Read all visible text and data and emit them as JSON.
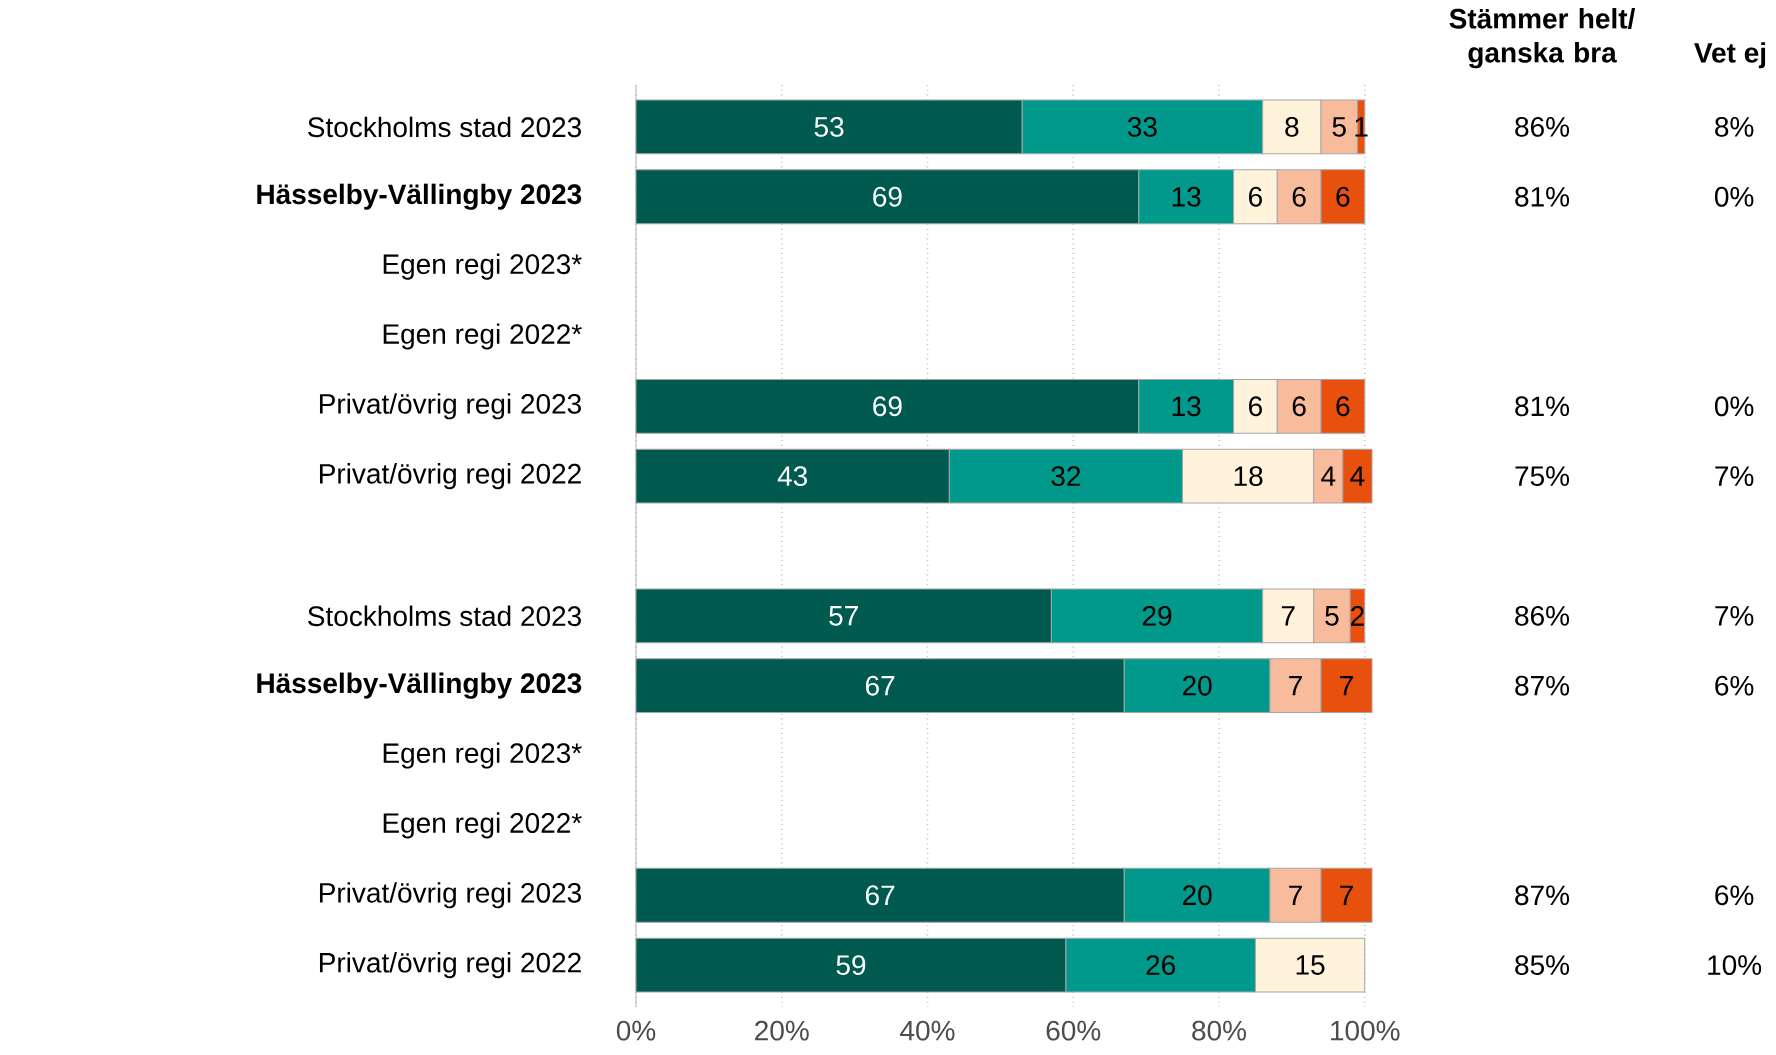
{
  "chart_data": {
    "type": "bar",
    "orientation": "horizontal",
    "stacked": true,
    "data_labels": true,
    "grid": "x",
    "categories": [
      "Stockholms stad 2023",
      "**Hässelby-Vällingby 2023**",
      "Egen regi 2023*",
      "Egen regi 2022*",
      "Privat/övrig regi 2023",
      "Privat/övrig regi 2022",
      null,
      "Stockholms stad 2023",
      "**Hässelby-Vällingby 2023**",
      "Egen regi 2023*",
      "Egen regi 2022*",
      "Privat/övrig regi 2023",
      "Privat/övrig regi 2022"
    ],
    "series": [
      {
        "color": "#005a4f",
        "values": [
          53,
          69,
          null,
          null,
          69,
          43,
          null,
          57,
          67,
          null,
          null,
          67,
          59
        ]
      },
      {
        "color": "#00998c",
        "values": [
          33,
          13,
          null,
          null,
          13,
          32,
          null,
          29,
          20,
          null,
          null,
          20,
          26
        ]
      },
      {
        "color": "#fff3dc",
        "values": [
          8,
          6,
          null,
          null,
          6,
          18,
          null,
          7,
          null,
          null,
          null,
          null,
          15
        ]
      },
      {
        "color": "#f8bc9c",
        "values": [
          5,
          6,
          null,
          null,
          6,
          4,
          null,
          5,
          7,
          null,
          null,
          7,
          null
        ]
      },
      {
        "color": "#e8500e",
        "values": [
          1,
          6,
          null,
          null,
          6,
          4,
          null,
          2,
          7,
          null,
          null,
          7,
          null
        ]
      }
    ],
    "xlim": [
      0,
      101
    ],
    "xticks": [
      {
        "value": 0,
        "label": "0%"
      },
      {
        "value": 20,
        "label": "20%"
      },
      {
        "value": 40,
        "label": "40%"
      },
      {
        "value": 60,
        "label": "60%"
      },
      {
        "value": 80,
        "label": "80%"
      },
      {
        "value": 100,
        "label": "100%"
      }
    ],
    "annotations": [
      "Stämmer helt/ ganska bra",
      "Vet ej",
      "86%",
      "8%",
      "81%",
      "0%",
      "81%",
      "0%",
      "75%",
      "7%",
      "86%",
      "7%",
      "87%",
      "6%",
      "87%",
      "6%",
      "85%",
      "10%"
    ]
  }
}
